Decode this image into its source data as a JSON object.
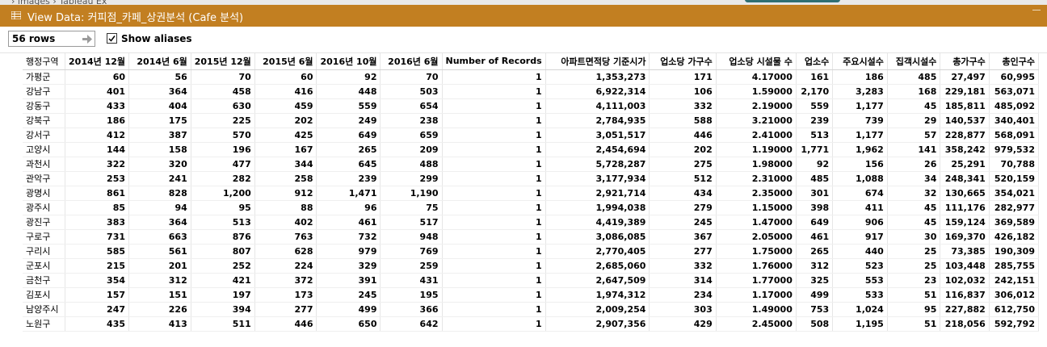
{
  "background": {
    "crumb": "›  images  ›  Tableau Ex"
  },
  "window": {
    "title": "View Data:  커피점_카페_상권분석 (Cafe 분석)",
    "rows_label": "56 rows",
    "show_aliases_label": "Show aliases",
    "show_aliases_checked": true
  },
  "colors": {
    "titlebar": "#c27f21",
    "accent_bg": "#2f6f73"
  },
  "table": {
    "columns": [
      "행정구역",
      "2014년 12월",
      "2014년 6월",
      "2015년 12월",
      "2015년 6월",
      "2016년 10월",
      "2016년 6월",
      "Number of Records",
      "아파트면적당 기준시가",
      "업소당 가구수",
      "업소당 시설물 수",
      "업소수",
      "주요시설수",
      "집객시설수",
      "총가구수",
      "총인구수"
    ],
    "rows": [
      [
        "가평군",
        "60",
        "56",
        "70",
        "60",
        "92",
        "70",
        "1",
        "1,353,273",
        "171",
        "4.17000",
        "161",
        "186",
        "485",
        "27,497",
        "60,995"
      ],
      [
        "강남구",
        "401",
        "364",
        "458",
        "416",
        "448",
        "503",
        "1",
        "6,922,314",
        "106",
        "1.59000",
        "2,170",
        "3,283",
        "168",
        "229,181",
        "563,071"
      ],
      [
        "강동구",
        "433",
        "404",
        "630",
        "459",
        "559",
        "654",
        "1",
        "4,111,003",
        "332",
        "2.19000",
        "559",
        "1,177",
        "45",
        "185,811",
        "485,092"
      ],
      [
        "강북구",
        "186",
        "175",
        "225",
        "202",
        "249",
        "238",
        "1",
        "2,784,935",
        "588",
        "3.21000",
        "239",
        "739",
        "29",
        "140,537",
        "340,401"
      ],
      [
        "강서구",
        "412",
        "387",
        "570",
        "425",
        "649",
        "659",
        "1",
        "3,051,517",
        "446",
        "2.41000",
        "513",
        "1,177",
        "57",
        "228,877",
        "568,091"
      ],
      [
        "고양시",
        "144",
        "158",
        "196",
        "167",
        "265",
        "209",
        "1",
        "2,454,694",
        "202",
        "1.19000",
        "1,771",
        "1,962",
        "141",
        "358,242",
        "979,532"
      ],
      [
        "과천시",
        "322",
        "320",
        "477",
        "344",
        "645",
        "488",
        "1",
        "5,728,287",
        "275",
        "1.98000",
        "92",
        "156",
        "26",
        "25,291",
        "70,788"
      ],
      [
        "관악구",
        "253",
        "241",
        "282",
        "258",
        "239",
        "299",
        "1",
        "3,177,934",
        "512",
        "2.31000",
        "485",
        "1,088",
        "34",
        "248,341",
        "520,159"
      ],
      [
        "광명시",
        "861",
        "828",
        "1,200",
        "912",
        "1,471",
        "1,190",
        "1",
        "2,921,714",
        "434",
        "2.35000",
        "301",
        "674",
        "32",
        "130,665",
        "354,021"
      ],
      [
        "광주시",
        "85",
        "94",
        "95",
        "88",
        "96",
        "75",
        "1",
        "1,994,038",
        "279",
        "1.15000",
        "398",
        "411",
        "45",
        "111,176",
        "282,977"
      ],
      [
        "광진구",
        "383",
        "364",
        "513",
        "402",
        "461",
        "517",
        "1",
        "4,419,389",
        "245",
        "1.47000",
        "649",
        "906",
        "45",
        "159,124",
        "369,589"
      ],
      [
        "구로구",
        "731",
        "663",
        "876",
        "763",
        "732",
        "948",
        "1",
        "3,086,085",
        "367",
        "2.05000",
        "461",
        "917",
        "30",
        "169,370",
        "426,182"
      ],
      [
        "구리시",
        "585",
        "561",
        "807",
        "628",
        "979",
        "769",
        "1",
        "2,770,405",
        "277",
        "1.75000",
        "265",
        "440",
        "25",
        "73,385",
        "190,309"
      ],
      [
        "군포시",
        "215",
        "201",
        "252",
        "224",
        "329",
        "259",
        "1",
        "2,685,060",
        "332",
        "1.76000",
        "312",
        "523",
        "25",
        "103,448",
        "285,755"
      ],
      [
        "금천구",
        "354",
        "312",
        "421",
        "372",
        "391",
        "431",
        "1",
        "2,647,509",
        "314",
        "1.77000",
        "325",
        "553",
        "23",
        "102,032",
        "242,151"
      ],
      [
        "김포시",
        "157",
        "151",
        "197",
        "173",
        "245",
        "195",
        "1",
        "1,974,312",
        "234",
        "1.17000",
        "499",
        "533",
        "51",
        "116,837",
        "306,012"
      ],
      [
        "남양주시",
        "247",
        "226",
        "394",
        "277",
        "499",
        "366",
        "1",
        "2,009,254",
        "303",
        "1.49000",
        "753",
        "1,024",
        "95",
        "227,882",
        "612,750"
      ],
      [
        "노원구",
        "435",
        "413",
        "511",
        "446",
        "650",
        "642",
        "1",
        "2,907,356",
        "429",
        "2.45000",
        "508",
        "1,195",
        "51",
        "218,056",
        "592,792"
      ]
    ]
  }
}
